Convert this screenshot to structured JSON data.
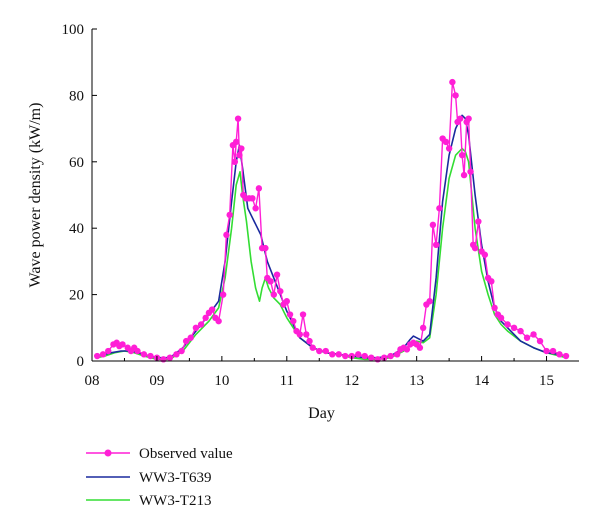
{
  "chart_data": {
    "type": "line",
    "xlabel": "Day",
    "ylabel": "Wave power density (kW/m)",
    "xlim": [
      8.0,
      15.5
    ],
    "ylim": [
      0,
      100
    ],
    "x_ticks": [
      8,
      9,
      10,
      11,
      12,
      13,
      14,
      15
    ],
    "x_tick_labels": [
      "08",
      "09",
      "10",
      "11",
      "12",
      "13",
      "14",
      "15"
    ],
    "y_ticks": [
      0,
      20,
      40,
      60,
      80,
      100
    ],
    "y_tick_labels": [
      "0",
      "20",
      "40",
      "60",
      "80",
      "100"
    ],
    "grid": false,
    "legend_position": "bottom-left, below plot",
    "series": [
      {
        "name": "Observed value",
        "color": "#ff1fd6",
        "marker": "circle",
        "x": [
          8.08,
          8.17,
          8.25,
          8.33,
          8.38,
          8.42,
          8.47,
          8.55,
          8.6,
          8.65,
          8.7,
          8.8,
          8.9,
          9.0,
          9.1,
          9.2,
          9.3,
          9.38,
          9.45,
          9.52,
          9.6,
          9.68,
          9.75,
          9.8,
          9.85,
          9.9,
          9.95,
          10.02,
          10.07,
          10.12,
          10.17,
          10.2,
          10.22,
          10.25,
          10.27,
          10.3,
          10.33,
          10.37,
          10.42,
          10.47,
          10.52,
          10.57,
          10.62,
          10.67,
          10.7,
          10.75,
          10.8,
          10.85,
          10.9,
          10.95,
          11.0,
          11.05,
          11.1,
          11.15,
          11.2,
          11.25,
          11.3,
          11.35,
          11.4,
          11.5,
          11.6,
          11.7,
          11.8,
          11.9,
          12.0,
          12.1,
          12.2,
          12.3,
          12.4,
          12.5,
          12.6,
          12.7,
          12.75,
          12.8,
          12.85,
          12.9,
          12.95,
          13.0,
          13.05,
          13.1,
          13.15,
          13.2,
          13.25,
          13.3,
          13.35,
          13.4,
          13.45,
          13.5,
          13.55,
          13.6,
          13.63,
          13.67,
          13.7,
          13.73,
          13.77,
          13.8,
          13.83,
          13.87,
          13.9,
          13.95,
          14.0,
          14.05,
          14.1,
          14.15,
          14.2,
          14.25,
          14.3,
          14.4,
          14.5,
          14.6,
          14.7,
          14.8,
          14.9,
          15.0,
          15.1,
          15.2,
          15.3
        ],
        "values": [
          1.5,
          2.0,
          3.0,
          5.0,
          5.5,
          4.5,
          5.0,
          4.0,
          3.0,
          4.0,
          3.0,
          2.0,
          1.5,
          1.0,
          0.5,
          1.0,
          2.0,
          3.0,
          6.0,
          7.0,
          10.0,
          11.0,
          13.0,
          14.5,
          15.5,
          13.0,
          12.0,
          20.0,
          38.0,
          44.0,
          65.0,
          60.0,
          66.0,
          73.0,
          62.0,
          64.0,
          50.0,
          49.0,
          49.0,
          49.0,
          46.0,
          52.0,
          34.0,
          34.0,
          25.0,
          24.0,
          20.0,
          26.0,
          21.0,
          17.0,
          18.0,
          14.0,
          12.0,
          9.0,
          8.0,
          14.0,
          8.0,
          6.0,
          4.0,
          3.0,
          3.0,
          2.0,
          2.0,
          1.5,
          1.5,
          2.0,
          1.5,
          1.0,
          0.5,
          1.0,
          1.5,
          2.0,
          3.5,
          4.0,
          3.5,
          5.0,
          5.5,
          5.0,
          4.0,
          10.0,
          17.0,
          18.0,
          41.0,
          35.0,
          46.0,
          67.0,
          66.0,
          64.0,
          84.0,
          80.0,
          72.0,
          73.0,
          62.0,
          56.0,
          72.0,
          73.0,
          57.0,
          35.0,
          34.0,
          42.0,
          33.0,
          32.0,
          25.0,
          24.0,
          16.0,
          14.0,
          13.0,
          11.0,
          10.0,
          9.0,
          7.0,
          8.0,
          6.0,
          3.0,
          3.0,
          2.0,
          1.5
        ]
      },
      {
        "name": "WW3-T639",
        "color": "#1a2a9e",
        "x": [
          8.08,
          8.2,
          8.3,
          8.45,
          8.6,
          8.8,
          9.0,
          9.2,
          9.4,
          9.6,
          9.8,
          9.95,
          10.05,
          10.15,
          10.22,
          10.27,
          10.32,
          10.4,
          10.5,
          10.6,
          10.7,
          10.8,
          10.9,
          11.0,
          11.1,
          11.2,
          11.4,
          11.6,
          11.8,
          12.0,
          12.2,
          12.4,
          12.6,
          12.8,
          12.9,
          12.95,
          13.0,
          13.1,
          13.2,
          13.3,
          13.4,
          13.5,
          13.6,
          13.7,
          13.75,
          13.8,
          13.9,
          14.0,
          14.1,
          14.2,
          14.3,
          14.4,
          14.5,
          14.6,
          14.8,
          15.0,
          15.2,
          15.3
        ],
        "values": [
          1.5,
          2.0,
          2.5,
          3.0,
          3.0,
          2.0,
          1.0,
          1.0,
          4.0,
          9.0,
          14.0,
          18.0,
          30.0,
          48.0,
          60.0,
          65.0,
          58.0,
          46.0,
          42.0,
          38.0,
          30.0,
          25.0,
          20.0,
          15.0,
          11.0,
          7.0,
          4.0,
          2.5,
          2.0,
          1.5,
          1.0,
          1.0,
          1.5,
          4.0,
          6.5,
          7.5,
          7.0,
          6.0,
          8.0,
          25.0,
          48.0,
          62.0,
          70.0,
          74.0,
          73.0,
          68.0,
          50.0,
          35.0,
          24.0,
          16.0,
          12.0,
          10.0,
          8.0,
          6.0,
          4.0,
          2.5,
          2.0,
          1.5
        ]
      },
      {
        "name": "WW3-T213",
        "color": "#33dd33",
        "x": [
          8.08,
          8.2,
          8.35,
          8.5,
          8.65,
          8.8,
          9.0,
          9.2,
          9.4,
          9.6,
          9.8,
          9.95,
          10.05,
          10.15,
          10.22,
          10.28,
          10.32,
          10.38,
          10.45,
          10.52,
          10.58,
          10.62,
          10.67,
          10.72,
          10.8,
          10.9,
          11.0,
          11.1,
          11.2,
          11.4,
          11.6,
          11.8,
          12.0,
          12.2,
          12.4,
          12.6,
          12.8,
          12.9,
          13.0,
          13.1,
          13.2,
          13.3,
          13.4,
          13.5,
          13.6,
          13.7,
          13.75,
          13.8,
          13.9,
          14.0,
          14.1,
          14.2,
          14.3,
          14.4,
          14.6,
          14.8,
          15.0,
          15.2,
          15.3
        ],
        "values": [
          1.0,
          1.5,
          2.5,
          3.0,
          2.5,
          1.5,
          0.5,
          0.5,
          3.0,
          8.0,
          12.0,
          16.0,
          25.0,
          40.0,
          53.0,
          57.0,
          50.0,
          42.0,
          30.0,
          22.0,
          18.0,
          22.0,
          25.0,
          22.0,
          19.0,
          17.0,
          13.0,
          10.0,
          7.0,
          4.0,
          2.5,
          2.0,
          1.0,
          0.5,
          0.5,
          1.0,
          3.0,
          5.0,
          6.0,
          5.5,
          7.0,
          20.0,
          40.0,
          55.0,
          62.0,
          64.0,
          63.0,
          60.0,
          40.0,
          27.0,
          20.0,
          14.0,
          11.0,
          9.0,
          6.0,
          4.0,
          2.5,
          1.5,
          1.0
        ]
      }
    ]
  }
}
